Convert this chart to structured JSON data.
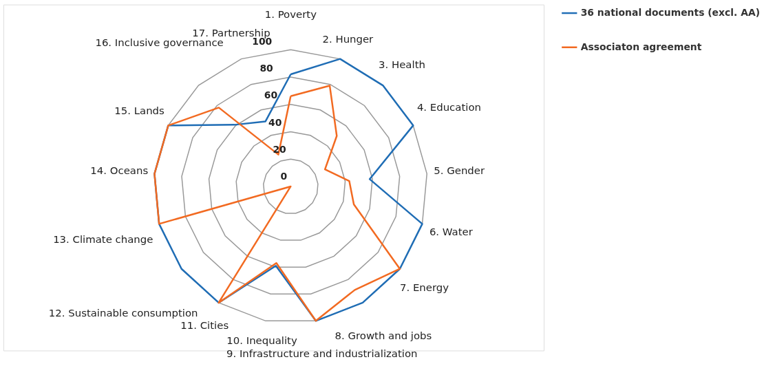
{
  "chart_data": {
    "type": "radar",
    "categories": [
      "1. Poverty",
      "2. Hunger",
      "3. Health",
      "4. Education",
      "5. Gender",
      "6. Water",
      "7. Energy",
      "8. Growth and jobs",
      "9. Infrastructure and industrialization",
      "10. Inequality",
      "11. Cities",
      "12. Sustainable consumption",
      "13. Climate change",
      "14. Oceans",
      "15. Lands",
      "16. Inclusive governance",
      "17. Partnership"
    ],
    "series": [
      {
        "name": "36 national documents (excl. AA)",
        "color": "#1f6db5",
        "values": [
          82,
          100,
          100,
          100,
          58,
          100,
          100,
          100,
          100,
          59,
          100,
          100,
          100,
          100,
          100,
          61,
          51
        ]
      },
      {
        "name": "Associaton agreement",
        "color": "#f26a21",
        "values": [
          66,
          79,
          50,
          28,
          43,
          48,
          100,
          89,
          100,
          57,
          100,
          0,
          100,
          100,
          100,
          78,
          25
        ]
      }
    ],
    "ylim": [
      0,
      100
    ],
    "yticks": [
      0,
      20,
      40,
      60,
      80,
      100
    ],
    "legend": "top right"
  }
}
